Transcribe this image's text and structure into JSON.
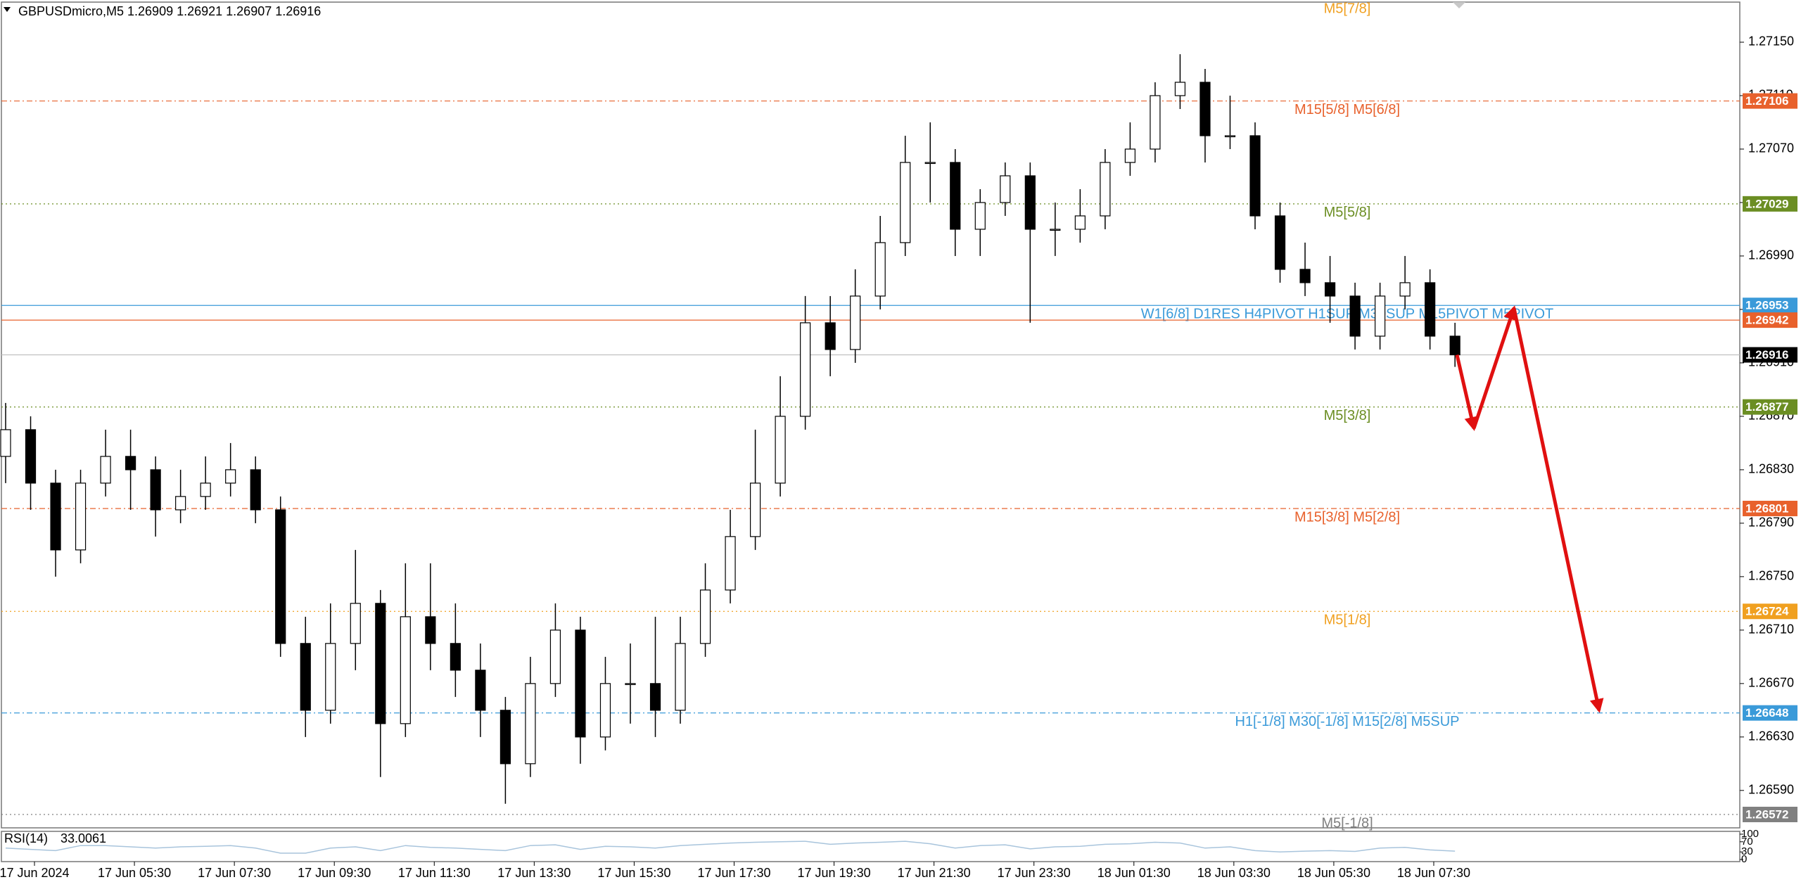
{
  "chart_data": {
    "type": "candlestick",
    "title": "GBPUSDmicro,M5  1.26909 1.26921 1.26907 1.26916",
    "ohlc": [
      [
        1.2684,
        1.2688,
        1.2682,
        1.2686
      ],
      [
        1.2686,
        1.2687,
        1.268,
        1.2682
      ],
      [
        1.2682,
        1.2683,
        1.2675,
        1.2677
      ],
      [
        1.2677,
        1.2683,
        1.2676,
        1.2682
      ],
      [
        1.2682,
        1.2686,
        1.2681,
        1.2684
      ],
      [
        1.2684,
        1.2686,
        1.268,
        1.2683
      ],
      [
        1.2683,
        1.2684,
        1.2678,
        1.268
      ],
      [
        1.268,
        1.2683,
        1.2679,
        1.2681
      ],
      [
        1.2681,
        1.2684,
        1.268,
        1.2682
      ],
      [
        1.2682,
        1.2685,
        1.2681,
        1.2683
      ],
      [
        1.2683,
        1.2684,
        1.2679,
        1.268
      ],
      [
        1.268,
        1.2681,
        1.2669,
        1.267
      ],
      [
        1.267,
        1.2672,
        1.2663,
        1.2665
      ],
      [
        1.2665,
        1.2673,
        1.2664,
        1.267
      ],
      [
        1.267,
        1.2677,
        1.2668,
        1.2673
      ],
      [
        1.2673,
        1.2674,
        1.266,
        1.2664
      ],
      [
        1.2664,
        1.2676,
        1.2663,
        1.2672
      ],
      [
        1.2672,
        1.2676,
        1.2668,
        1.267
      ],
      [
        1.267,
        1.2673,
        1.2666,
        1.2668
      ],
      [
        1.2668,
        1.267,
        1.2663,
        1.2665
      ],
      [
        1.2665,
        1.2666,
        1.2658,
        1.2661
      ],
      [
        1.2661,
        1.2669,
        1.266,
        1.2667
      ],
      [
        1.2667,
        1.2673,
        1.2666,
        1.2671
      ],
      [
        1.2671,
        1.2672,
        1.2661,
        1.2663
      ],
      [
        1.2663,
        1.2669,
        1.2662,
        1.2667
      ],
      [
        1.2667,
        1.267,
        1.2664,
        1.2667
      ],
      [
        1.2667,
        1.2672,
        1.2663,
        1.2665
      ],
      [
        1.2665,
        1.2672,
        1.2664,
        1.267
      ],
      [
        1.267,
        1.2676,
        1.2669,
        1.2674
      ],
      [
        1.2674,
        1.268,
        1.2673,
        1.2678
      ],
      [
        1.2678,
        1.2686,
        1.2677,
        1.2682
      ],
      [
        1.2682,
        1.269,
        1.2681,
        1.2687
      ],
      [
        1.2687,
        1.2696,
        1.2686,
        1.2694
      ],
      [
        1.2694,
        1.2696,
        1.269,
        1.2692
      ],
      [
        1.2692,
        1.2698,
        1.2691,
        1.2696
      ],
      [
        1.2696,
        1.2702,
        1.2695,
        1.27
      ],
      [
        1.27,
        1.2708,
        1.2699,
        1.2706
      ],
      [
        1.2706,
        1.2709,
        1.2703,
        1.2706
      ],
      [
        1.2706,
        1.2707,
        1.2699,
        1.2701
      ],
      [
        1.2701,
        1.2704,
        1.2699,
        1.2703
      ],
      [
        1.2703,
        1.2706,
        1.2702,
        1.2705
      ],
      [
        1.2705,
        1.2706,
        1.2694,
        1.2701
      ],
      [
        1.2701,
        1.2703,
        1.2699,
        1.2701
      ],
      [
        1.2701,
        1.2704,
        1.27,
        1.2702
      ],
      [
        1.2702,
        1.2707,
        1.2701,
        1.2706
      ],
      [
        1.2706,
        1.2709,
        1.2705,
        1.2707
      ],
      [
        1.2707,
        1.2712,
        1.2706,
        1.2711
      ],
      [
        1.2711,
        1.27141,
        1.271,
        1.2712
      ],
      [
        1.2712,
        1.2713,
        1.2706,
        1.2708
      ],
      [
        1.2708,
        1.2711,
        1.2707,
        1.2708
      ],
      [
        1.2708,
        1.2709,
        1.2701,
        1.2702
      ],
      [
        1.2702,
        1.2703,
        1.2697,
        1.2698
      ],
      [
        1.2698,
        1.27,
        1.2696,
        1.2697
      ],
      [
        1.2697,
        1.2699,
        1.2694,
        1.2696
      ],
      [
        1.2696,
        1.2697,
        1.2692,
        1.2693
      ],
      [
        1.2693,
        1.2697,
        1.2692,
        1.2696
      ],
      [
        1.2696,
        1.2699,
        1.2695,
        1.2697
      ],
      [
        1.2697,
        1.2698,
        1.2692,
        1.2693
      ],
      [
        1.2693,
        1.2694,
        1.26907,
        1.26916
      ]
    ],
    "x_labels": [
      "17 Jun 2024",
      "17 Jun 05:30",
      "17 Jun 07:30",
      "17 Jun 09:30",
      "17 Jun 11:30",
      "17 Jun 13:30",
      "17 Jun 15:30",
      "17 Jun 17:30",
      "17 Jun 19:30",
      "17 Jun 21:30",
      "17 Jun 23:30",
      "18 Jun 01:30",
      "18 Jun 03:30",
      "18 Jun 05:30",
      "18 Jun 07:30"
    ],
    "ylim": [
      1.26562,
      1.2718
    ],
    "yticks": [
      {
        "value": 1.2659,
        "label": "1.26590"
      },
      {
        "value": 1.2663,
        "label": "1.26630"
      },
      {
        "value": 1.2667,
        "label": "1.26670"
      },
      {
        "value": 1.2671,
        "label": "1.26710"
      },
      {
        "value": 1.2675,
        "label": "1.26750"
      },
      {
        "value": 1.2679,
        "label": "1.26790"
      },
      {
        "value": 1.2683,
        "label": "1.26830"
      },
      {
        "value": 1.2687,
        "label": "1.26870"
      },
      {
        "value": 1.2691,
        "label": "1.26910"
      },
      {
        "value": 1.2695,
        "label": "1.26950"
      },
      {
        "value": 1.2699,
        "label": "1.26990"
      },
      {
        "value": 1.2703,
        "label": "1.27030"
      },
      {
        "value": 1.2707,
        "label": "1.27070"
      },
      {
        "value": 1.2711,
        "label": "1.27110"
      },
      {
        "value": 1.2715,
        "label": "1.27150"
      }
    ],
    "levels": [
      {
        "price": 1.27106,
        "text": "M15[5/8] M5[6/8]",
        "color": "#e8612c",
        "style": "dashdot"
      },
      {
        "price": 1.27029,
        "text": "M5[5/8]",
        "color": "#6b8e23",
        "style": "dot"
      },
      {
        "price": 1.26953,
        "text": "W1[6/8] D1RES H4PIVOT H1SUP M30SUP M15PIVOT M5PIVOT",
        "color": "#3a9ad9",
        "style": "solid"
      },
      {
        "price": 1.26942,
        "color": "#e8612c",
        "style": "solid"
      },
      {
        "price": 1.26916,
        "color": "#000000",
        "style": "current"
      },
      {
        "price": 1.26877,
        "text": "M5[3/8]",
        "color": "#6b8e23",
        "style": "dot"
      },
      {
        "price": 1.26801,
        "text": "M15[3/8] M5[2/8]",
        "color": "#e8612c",
        "style": "dashdot"
      },
      {
        "price": 1.26724,
        "text": "M5[1/8]",
        "color": "#f0a020",
        "style": "dot"
      },
      {
        "price": 1.26648,
        "text": "H1[-1/8] M30[-1/8] M15[2/8] M5SUP",
        "color": "#3a9ad9",
        "style": "dashdot"
      },
      {
        "price": 1.26572,
        "text": "M5[-1/8]",
        "color": "#808080",
        "style": "dot"
      }
    ],
    "top_label": {
      "text": "M5[7/8]",
      "color": "#f0a020"
    },
    "forecast": {
      "values": [
        1.26916,
        1.26861,
        1.26951,
        1.2665
      ],
      "color": "#e01010"
    },
    "rsi": {
      "name": "RSI(14)",
      "color": "#a8c4dc",
      "ylim": [
        0,
        100
      ],
      "yticks": [
        100,
        70,
        30,
        0
      ],
      "values": [
        45,
        40,
        35,
        55,
        55,
        50,
        45,
        50,
        52,
        55,
        45,
        25,
        25,
        45,
        50,
        35,
        55,
        48,
        45,
        40,
        35,
        55,
        58,
        40,
        52,
        50,
        45,
        55,
        60,
        65,
        68,
        70,
        72,
        60,
        65,
        68,
        72,
        62,
        45,
        55,
        58,
        42,
        50,
        52,
        60,
        62,
        68,
        65,
        45,
        50,
        35,
        30,
        33,
        35,
        32,
        45,
        48,
        38,
        33.0061
      ]
    }
  }
}
